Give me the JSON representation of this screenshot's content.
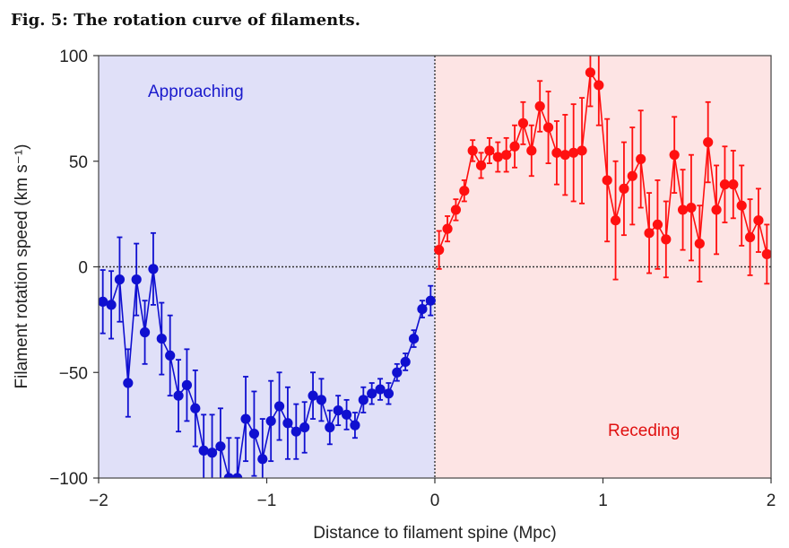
{
  "figure_title": "Fig. 5: The rotation curve of filaments.",
  "chart_data": {
    "type": "scatter",
    "title": "",
    "xlabel": "Distance to filament spine (Mpc)",
    "ylabel": "Filament rotation speed (km s⁻¹)",
    "xlim": [
      -2,
      2
    ],
    "ylim": [
      -100,
      100
    ],
    "xticks": [
      "−2",
      "−1",
      "0",
      "1",
      "2"
    ],
    "xtick_values": [
      -2,
      -1,
      0,
      1,
      2
    ],
    "yticks": [
      "−100",
      "−50",
      "0",
      "50",
      "100"
    ],
    "ytick_values": [
      -100,
      -50,
      0,
      50,
      100
    ],
    "grid": false,
    "reference_lines": {
      "y": 0,
      "x": 0,
      "style": "dotted"
    },
    "regions": [
      {
        "label": "Approaching",
        "x_range": [
          -2,
          0
        ],
        "color": "#e0e0f8",
        "text_color": "#1a1acc"
      },
      {
        "label": "Receding",
        "x_range": [
          0,
          2
        ],
        "color": "#fde4e4",
        "text_color": "#e01010"
      }
    ],
    "series": [
      {
        "color": "#1010d0",
        "x": [
          -1.975,
          -1.925,
          -1.875,
          -1.825,
          -1.775,
          -1.725,
          -1.675,
          -1.625,
          -1.575,
          -1.525,
          -1.475,
          -1.425,
          -1.375,
          -1.325,
          -1.275,
          -1.225,
          -1.175,
          -1.125,
          -1.075,
          -1.025,
          -0.975,
          -0.925,
          -0.875,
          -0.825,
          -0.775,
          -0.725,
          -0.675,
          -0.625,
          -0.575,
          -0.525,
          -0.475,
          -0.425,
          -0.375,
          -0.325,
          -0.275,
          -0.225,
          -0.175,
          -0.125,
          -0.075,
          -0.025
        ],
        "y": [
          -16.5,
          -18,
          -6,
          -55,
          -6,
          -31,
          -1,
          -34,
          -42,
          -61,
          -56,
          -67,
          -87,
          -88,
          -85,
          -100,
          -100,
          -72,
          -79,
          -91,
          -73,
          -66,
          -74,
          -78,
          -76,
          -61,
          -63,
          -76,
          -68,
          -70,
          -75,
          -63,
          -60,
          -58,
          -60,
          -50,
          -45,
          -34,
          -20,
          -16
        ],
        "err": [
          15,
          16,
          20,
          16,
          17,
          15,
          17,
          17,
          19,
          17,
          17,
          18,
          17,
          18,
          18,
          19,
          19,
          20,
          20,
          19,
          19,
          16,
          17,
          13,
          12,
          11,
          10,
          8,
          7,
          7,
          6,
          6,
          5,
          5,
          5,
          4,
          4,
          4,
          4,
          7
        ]
      },
      {
        "color": "#ff1010",
        "x": [
          0.025,
          0.075,
          0.125,
          0.175,
          0.225,
          0.275,
          0.325,
          0.375,
          0.425,
          0.475,
          0.525,
          0.575,
          0.625,
          0.675,
          0.725,
          0.775,
          0.825,
          0.875,
          0.925,
          0.975,
          1.025,
          1.075,
          1.125,
          1.175,
          1.225,
          1.275,
          1.325,
          1.375,
          1.425,
          1.475,
          1.525,
          1.575,
          1.625,
          1.675,
          1.725,
          1.775,
          1.825,
          1.875,
          1.925,
          1.975
        ],
        "y": [
          8,
          18,
          27,
          36,
          55,
          48,
          55,
          52,
          53,
          57,
          68,
          55,
          76,
          66,
          54,
          53,
          54,
          55,
          92,
          86,
          41,
          22,
          37,
          43,
          51,
          16,
          20,
          13,
          53,
          27,
          28,
          11,
          59,
          27,
          39,
          39,
          29,
          14,
          22,
          6
        ],
        "err": [
          9,
          6,
          5,
          5,
          5,
          6,
          6,
          7,
          8,
          10,
          10,
          12,
          12,
          17,
          15,
          19,
          23,
          25,
          16,
          19,
          29,
          28,
          22,
          23,
          23,
          19,
          21,
          18,
          18,
          19,
          25,
          18,
          19,
          21,
          18,
          16,
          19,
          18,
          15,
          14
        ]
      }
    ]
  }
}
